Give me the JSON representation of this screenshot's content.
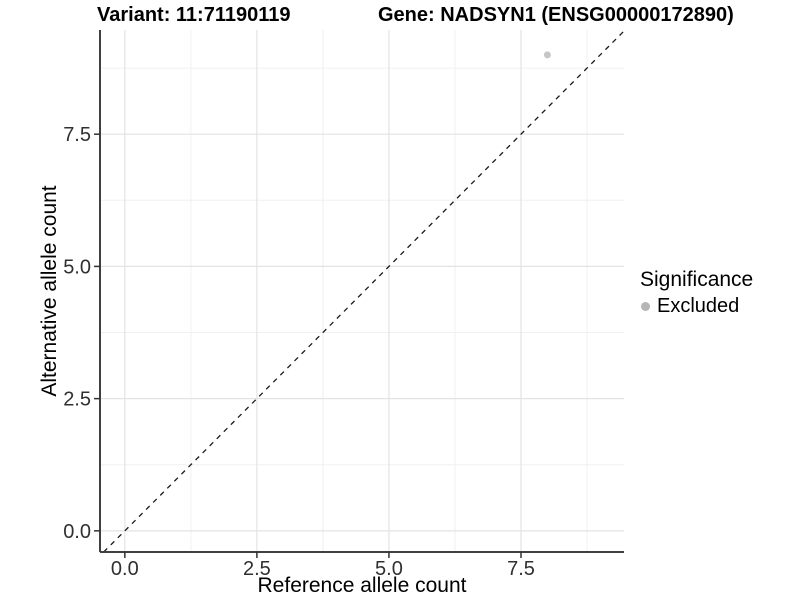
{
  "chart_data": {
    "type": "scatter",
    "title_left": "Variant: 11:71190119",
    "title_right": "Gene: NADSYN1 (ENSG00000172890)",
    "xlabel": "Reference allele count",
    "ylabel": "Alternative allele count",
    "xlim": [
      -0.47,
      9.45
    ],
    "ylim": [
      -0.4,
      9.47
    ],
    "xticks": {
      "values": [
        0,
        2.5,
        5,
        7.5
      ],
      "labels": [
        "0.0",
        "2.5",
        "5.0",
        "7.5"
      ]
    },
    "yticks": {
      "values": [
        0,
        2.5,
        5,
        7.5
      ],
      "labels": [
        "0.0",
        "2.5",
        "5.0",
        "7.5"
      ]
    },
    "xticks_minor": [
      1.25,
      3.75,
      6.25,
      8.75
    ],
    "yticks_minor": [
      1.25,
      3.75,
      6.25,
      8.75
    ],
    "grid": true,
    "points": [
      {
        "x": 8,
        "y": 9,
        "series": "Excluded"
      }
    ],
    "reference_line": {
      "type": "identity",
      "slope": 1,
      "intercept": 0,
      "style": "dashed",
      "color": "#1a1a1a"
    },
    "legend": {
      "title": "Significance",
      "position": "right",
      "items": [
        {
          "label": "Excluded",
          "color": "#b5b5b5",
          "marker": "circle"
        }
      ]
    },
    "colors": {
      "point": "#c6c6c6",
      "grid_major": "#e3e3e3",
      "grid_minor": "#f0f0f0",
      "axis_line": "#404040",
      "tick_mark": "#333333",
      "tick_label": "#303030",
      "background": "#ffffff"
    }
  }
}
